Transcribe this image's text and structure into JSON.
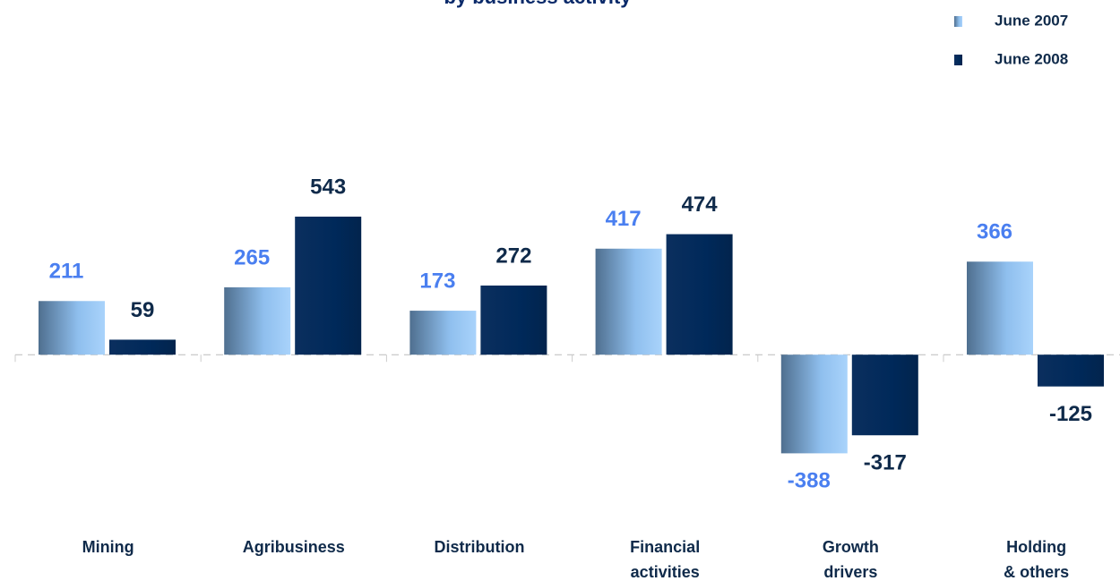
{
  "chart_data": {
    "type": "bar",
    "title": "by business activity",
    "categories": [
      "Mining",
      "Agribusiness",
      "Distribution",
      "Financial\nactivities",
      "Growth\ndrivers",
      "Holding\n& others"
    ],
    "series": [
      {
        "name": "June 2007",
        "color": "#8fbfee",
        "label_color": "#4a7ff0",
        "values": [
          211,
          265,
          173,
          417,
          -388,
          366
        ]
      },
      {
        "name": "June 2008",
        "color": "#00295a",
        "label_color": "#0f2a4a",
        "values": [
          59,
          543,
          272,
          474,
          -317,
          -125
        ]
      }
    ],
    "ylim": [
      -700,
      800
    ],
    "legend": "top-right"
  }
}
